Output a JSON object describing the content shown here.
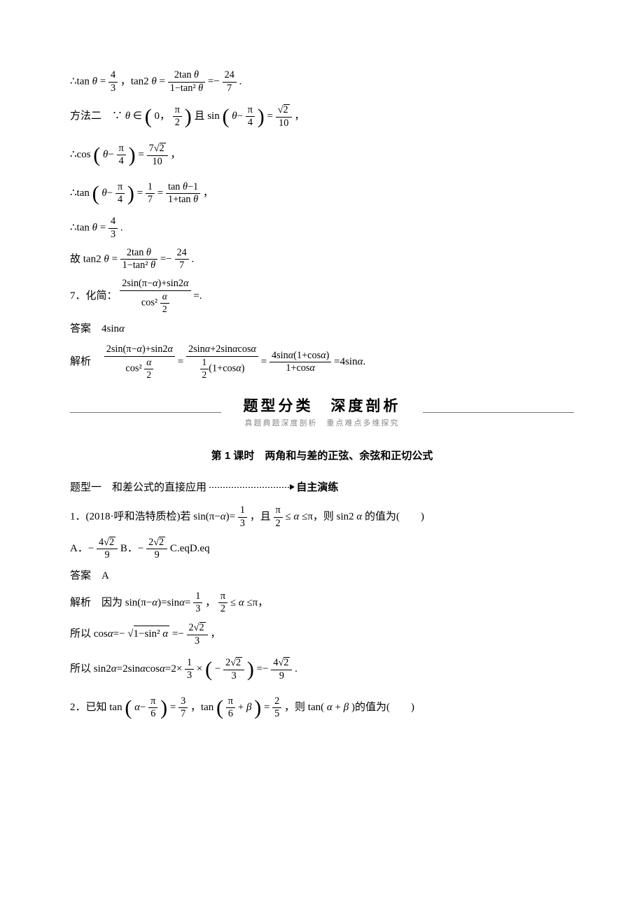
{
  "lines": {
    "l1a": "∴tan",
    "l1b": "=",
    "l1c": "，tan2",
    "l1d": "=",
    "l1e": "=−",
    "l1f": ".",
    "f_4": "4",
    "f_3": "3",
    "f_2tan": "2tan ",
    "f_1mtan2": "1−tan² ",
    "f_24": "24",
    "f_7": "7",
    "l2a": "方法二　∵",
    "l2b": "∈",
    "l2c": "且 sin",
    "l2d": "=",
    "l2e": "，",
    "zero": "0，",
    "pi2": "π",
    "two": "2",
    "pi4_pi": "π",
    "four": "4",
    "sqrt2": "2",
    "ten": "10",
    "l3a": "∴cos",
    "l3b": "=",
    "l3c": "，",
    "seven_sqrt2": "7",
    "l4a": "∴tan",
    "l4b": "=",
    "l4c": "=",
    "l4d": "，",
    "one": "1",
    "seven": "7",
    "tanm1": "tan ",
    "m1": "−1",
    "onep_tan": "1+tan ",
    "l5a": "∴tan",
    "l5b": "=",
    "l5c": ".",
    "l6a": "故 tan2",
    "l6b": "=",
    "l6c": "=−",
    "l6d": ".",
    "q7a": "7．化简：",
    "q7b": "=.",
    "q7num": "2sin(π−",
    "q7num2": ")+sin2",
    "q7den": "cos² ",
    "alpha2": "",
    "half2": "2",
    "ans7a": "答案　4sin",
    "sol7a": "解析　",
    "sol7eq": "=",
    "sol7num2": "2sin",
    "sol7num2b": "+2sin",
    "sol7num2c": "cos",
    "sol7den2a": "(1+cos",
    "sol7den2b": ")",
    "half": "1",
    "two_b": "2",
    "sol7num3a": "4sin",
    "sol7num3b": "(1+cos",
    "sol7num3c": ")",
    "sol7den3": "1+cos",
    "sol7end": "=4sin",
    "sol7end2": ".",
    "banner_big": "题型分类　深度剖析",
    "banner_sub": "真题典题深度剖析　重点难点多维探究",
    "sub_title": "第 1 课时　两角和与差的正弦、余弦和正切公式",
    "ttype_label": "题型一　和差公式的直接应用",
    "ttype_self": "自主演练",
    "q1a": "1．(2018·呼和浩特质检)若 sin(π−",
    "q1b": ")=",
    "q1c": "，且",
    "q1d": "≤",
    "q1e": "≤π，则 sin2",
    "q1f": " 的值为(　　)",
    "f_1": "1",
    "f_3b": "3",
    "f_pi": "π",
    "optA": "A．−",
    "optB": "B．−",
    "optC": "C.eqD.eq",
    "f_4s2_9n": "4",
    "f_4s2_9d": "9",
    "f_2s2_9n": "2",
    "f_2s2_9d": "9",
    "ans1": "答案　A",
    "sol1a": "解析　因为 sin(π−",
    "sol1b": ")=sin",
    "sol1c": "=",
    "sol1d": "，",
    "sol1e": "≤",
    "sol1f": "≤π，",
    "sol1g": "所以 cos",
    "sol1h": "=−",
    "sol1i": "=−",
    "sol1j": "，",
    "onemsin2": "1−sin² ",
    "f_2s2_3n": "2",
    "f_2s2_3d": "3",
    "sol1k": "所以 sin2",
    "sol1l": "=2sin",
    "sol1m": "cos",
    "sol1n": "=2×",
    "sol1o": "×",
    "sol1p": "=−",
    "sol1q": ".",
    "f_1_3n": "1",
    "f_1_3d": "3",
    "neg": "−",
    "q2a": "2．已知 tan",
    "q2b": "=",
    "q2c": "，tan",
    "q2d": "=",
    "q2e": "，则 tan(",
    "q2f": "+",
    "q2g": ")的值为(　　)",
    "f_pi6_pi": "π",
    "f_6": "6",
    "f_3_7n": "3",
    "f_3_7d": "7",
    "f_2_5n": "2",
    "f_2_5d": "5",
    "plus": "+"
  },
  "symbols": {
    "theta": "θ",
    "alpha": "α",
    "beta": "β"
  },
  "colors": {
    "text": "#000000",
    "bg": "#ffffff",
    "sub": "#888888"
  }
}
